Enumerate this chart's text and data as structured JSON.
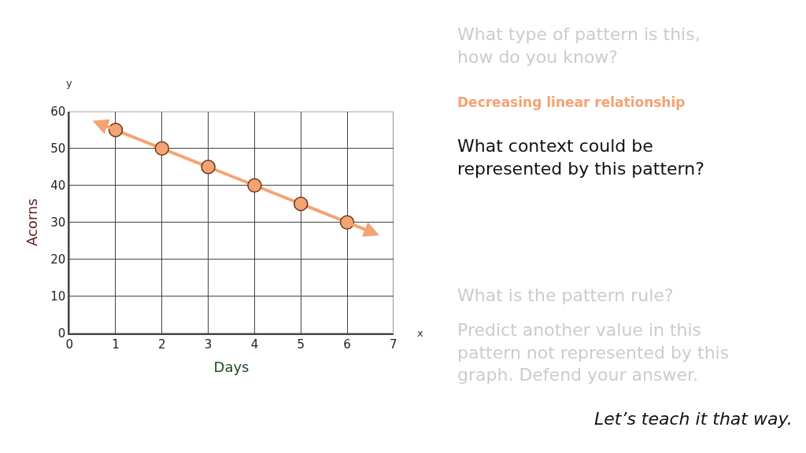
{
  "chart_data": {
    "type": "line",
    "xlabel": "Days",
    "ylabel": "Acorns",
    "xlim": [
      0,
      7
    ],
    "ylim": [
      0,
      60
    ],
    "xticks": [
      0,
      1,
      2,
      3,
      4,
      5,
      6,
      7
    ],
    "yticks": [
      0,
      10,
      20,
      30,
      40,
      50,
      60
    ],
    "grid": true,
    "marker": "circle",
    "x": [
      1,
      2,
      3,
      4,
      5,
      6
    ],
    "series": [
      {
        "color": "#f4a373",
        "values": [
          55,
          50,
          45,
          40,
          35,
          30
        ]
      }
    ],
    "annotations": [
      "What type of pattern is this,\nhow do you know?",
      "Decreasing linear relationship",
      "What context could be\nrepresented by this pattern?",
      "What is the pattern rule?",
      "Predict another value in this\npattern not represented by this\ngraph. Defend your answer.",
      "Let’s teach it that way.",
      "x",
      "y"
    ]
  }
}
